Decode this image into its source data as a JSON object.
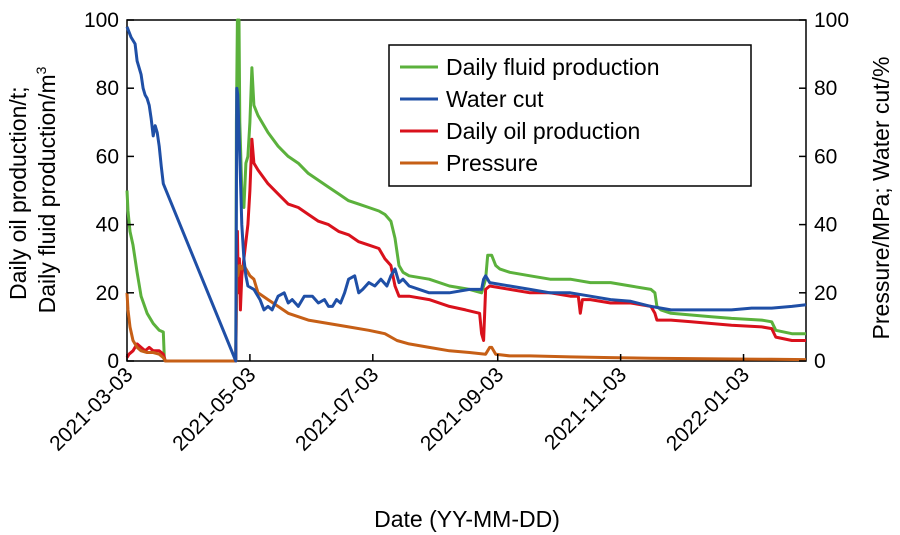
{
  "chart_data": {
    "type": "line",
    "xlabel": "Date (YY-MM-DD)",
    "ylabel_left": [
      "Daily oil production/t;",
      "Daily fluid production/m"
    ],
    "ylabel_left_superscript": "3",
    "ylabel_right": "Pressure/MPa; Water cut/%",
    "x_range_days": [
      0,
      337
    ],
    "x_ticks": [
      {
        "label": "2021-03-03",
        "day": 0
      },
      {
        "label": "2021-05-03",
        "day": 61
      },
      {
        "label": "2021-07-03",
        "day": 122
      },
      {
        "label": "2021-09-03",
        "day": 184
      },
      {
        "label": "2021-11-03",
        "day": 245
      },
      {
        "label": "2022-01-03",
        "day": 306
      }
    ],
    "y_left_ticks": [
      "0",
      "20",
      "40",
      "60",
      "80",
      "100"
    ],
    "y_right_ticks": [
      "0",
      "20",
      "40",
      "60",
      "80",
      "100"
    ],
    "y_left_range": [
      0,
      100
    ],
    "y_right_range": [
      0,
      100
    ],
    "legend_position": "top-right",
    "series": [
      {
        "name": "Daily fluid production",
        "color": "#5bb13c",
        "axis": "left",
        "points": [
          [
            0,
            50
          ],
          [
            0.5,
            44
          ],
          [
            1.5,
            38
          ],
          [
            3,
            34
          ],
          [
            5,
            26
          ],
          [
            7,
            19
          ],
          [
            10,
            14
          ],
          [
            13,
            11
          ],
          [
            16,
            9
          ],
          [
            18,
            8.5
          ],
          [
            18.5,
            1
          ],
          [
            19,
            0
          ],
          [
            54,
            0
          ],
          [
            54.3,
            70
          ],
          [
            54.8,
            100
          ],
          [
            55.2,
            80
          ],
          [
            55.6,
            100
          ],
          [
            56,
            70
          ],
          [
            57,
            50
          ],
          [
            58,
            45
          ],
          [
            59,
            58
          ],
          [
            60,
            60
          ],
          [
            61,
            70
          ],
          [
            62,
            86
          ],
          [
            63,
            75
          ],
          [
            65,
            72
          ],
          [
            70,
            67
          ],
          [
            75,
            63
          ],
          [
            80,
            60
          ],
          [
            85,
            58
          ],
          [
            90,
            55
          ],
          [
            95,
            53
          ],
          [
            100,
            51
          ],
          [
            105,
            49
          ],
          [
            110,
            47
          ],
          [
            115,
            46
          ],
          [
            120,
            45
          ],
          [
            125,
            44
          ],
          [
            128,
            43
          ],
          [
            131,
            41
          ],
          [
            133,
            36
          ],
          [
            134,
            32
          ],
          [
            135,
            28
          ],
          [
            137,
            26
          ],
          [
            140,
            25
          ],
          [
            150,
            24
          ],
          [
            160,
            22
          ],
          [
            170,
            21
          ],
          [
            176,
            20
          ],
          [
            177,
            22
          ],
          [
            178,
            24
          ],
          [
            179,
            31
          ],
          [
            181,
            31
          ],
          [
            183,
            28
          ],
          [
            185,
            27
          ],
          [
            190,
            26
          ],
          [
            200,
            25
          ],
          [
            210,
            24
          ],
          [
            220,
            24
          ],
          [
            230,
            23
          ],
          [
            240,
            23
          ],
          [
            250,
            22
          ],
          [
            260,
            21
          ],
          [
            262,
            20
          ],
          [
            263,
            16
          ],
          [
            265,
            15
          ],
          [
            270,
            14
          ],
          [
            280,
            13.5
          ],
          [
            290,
            13
          ],
          [
            300,
            12.5
          ],
          [
            315,
            12
          ],
          [
            320,
            11.5
          ],
          [
            322,
            9
          ],
          [
            330,
            8
          ],
          [
            337,
            8
          ]
        ]
      },
      {
        "name": "Water cut",
        "color": "#1f4fa6",
        "axis": "right",
        "points": [
          [
            0,
            98
          ],
          [
            2,
            95
          ],
          [
            4,
            93
          ],
          [
            5,
            88
          ],
          [
            6,
            86
          ],
          [
            7,
            84
          ],
          [
            8,
            80
          ],
          [
            9,
            78
          ],
          [
            10,
            77
          ],
          [
            11,
            75
          ],
          [
            12,
            71
          ],
          [
            13,
            66
          ],
          [
            14,
            69
          ],
          [
            15,
            67
          ],
          [
            16,
            63
          ],
          [
            17,
            57
          ],
          [
            18,
            52
          ],
          [
            54,
            0
          ],
          [
            54.5,
            80
          ],
          [
            55,
            78
          ],
          [
            56,
            60
          ],
          [
            57,
            40
          ],
          [
            58,
            30
          ],
          [
            59,
            25
          ],
          [
            60,
            22
          ],
          [
            63,
            21
          ],
          [
            66,
            18
          ],
          [
            68,
            15
          ],
          [
            70,
            16
          ],
          [
            72,
            15
          ],
          [
            75,
            19
          ],
          [
            78,
            20
          ],
          [
            80,
            17
          ],
          [
            82,
            18
          ],
          [
            85,
            16
          ],
          [
            88,
            19
          ],
          [
            92,
            19
          ],
          [
            95,
            17
          ],
          [
            98,
            18
          ],
          [
            100,
            16
          ],
          [
            102,
            16
          ],
          [
            104,
            18
          ],
          [
            106,
            17
          ],
          [
            108,
            20
          ],
          [
            110,
            24
          ],
          [
            113,
            25
          ],
          [
            115,
            20
          ],
          [
            117,
            21
          ],
          [
            120,
            23
          ],
          [
            123,
            22
          ],
          [
            126,
            24
          ],
          [
            129,
            22
          ],
          [
            131,
            25
          ],
          [
            133,
            27
          ],
          [
            135,
            23
          ],
          [
            137,
            24
          ],
          [
            140,
            22
          ],
          [
            145,
            21
          ],
          [
            150,
            20
          ],
          [
            160,
            20
          ],
          [
            170,
            21
          ],
          [
            176,
            21
          ],
          [
            177,
            24
          ],
          [
            178,
            25
          ],
          [
            180,
            23
          ],
          [
            190,
            22
          ],
          [
            200,
            21
          ],
          [
            210,
            20
          ],
          [
            220,
            20
          ],
          [
            230,
            19
          ],
          [
            240,
            18
          ],
          [
            250,
            17.5
          ],
          [
            260,
            16
          ],
          [
            270,
            15
          ],
          [
            280,
            15
          ],
          [
            290,
            15
          ],
          [
            300,
            15
          ],
          [
            310,
            15.5
          ],
          [
            320,
            15.5
          ],
          [
            330,
            16
          ],
          [
            337,
            16.5
          ]
        ]
      },
      {
        "name": "Daily oil production",
        "color": "#d9111c",
        "axis": "left",
        "points": [
          [
            0,
            1
          ],
          [
            1,
            2
          ],
          [
            3,
            3
          ],
          [
            5,
            5
          ],
          [
            7,
            4
          ],
          [
            9,
            3
          ],
          [
            11,
            4
          ],
          [
            13,
            3
          ],
          [
            16,
            3
          ],
          [
            18,
            2
          ],
          [
            19,
            0
          ],
          [
            54,
            0
          ],
          [
            54.3,
            20
          ],
          [
            54.8,
            38
          ],
          [
            55.3,
            20
          ],
          [
            55.8,
            30
          ],
          [
            56.3,
            15
          ],
          [
            57,
            25
          ],
          [
            58,
            30
          ],
          [
            59,
            35
          ],
          [
            60,
            40
          ],
          [
            61,
            50
          ],
          [
            62,
            65
          ],
          [
            63,
            58
          ],
          [
            65,
            56
          ],
          [
            70,
            52
          ],
          [
            75,
            49
          ],
          [
            80,
            46
          ],
          [
            85,
            45
          ],
          [
            90,
            43
          ],
          [
            95,
            41
          ],
          [
            100,
            40
          ],
          [
            105,
            38
          ],
          [
            110,
            37
          ],
          [
            115,
            35
          ],
          [
            120,
            34
          ],
          [
            125,
            33
          ],
          [
            128,
            30
          ],
          [
            131,
            28
          ],
          [
            133,
            22
          ],
          [
            135,
            19
          ],
          [
            140,
            19
          ],
          [
            150,
            18
          ],
          [
            160,
            16
          ],
          [
            168,
            15
          ],
          [
            175,
            14
          ],
          [
            176,
            8
          ],
          [
            177,
            6
          ],
          [
            178,
            21
          ],
          [
            180,
            22
          ],
          [
            190,
            21
          ],
          [
            200,
            20
          ],
          [
            210,
            20
          ],
          [
            220,
            19
          ],
          [
            224,
            19
          ],
          [
            225,
            14
          ],
          [
            226,
            18
          ],
          [
            230,
            18
          ],
          [
            240,
            17
          ],
          [
            250,
            17
          ],
          [
            260,
            16
          ],
          [
            262,
            14
          ],
          [
            263,
            12
          ],
          [
            270,
            12
          ],
          [
            280,
            11.5
          ],
          [
            290,
            11
          ],
          [
            300,
            10.5
          ],
          [
            315,
            10
          ],
          [
            320,
            9.5
          ],
          [
            322,
            7
          ],
          [
            330,
            6
          ],
          [
            337,
            6
          ]
        ]
      },
      {
        "name": "Pressure",
        "color": "#c65f16",
        "axis": "right",
        "points": [
          [
            0,
            20
          ],
          [
            0.5,
            15
          ],
          [
            1.5,
            10
          ],
          [
            3,
            6
          ],
          [
            5,
            4
          ],
          [
            7,
            3
          ],
          [
            10,
            2.5
          ],
          [
            13,
            2.5
          ],
          [
            16,
            2
          ],
          [
            18,
            1
          ],
          [
            19,
            0
          ],
          [
            54,
            0
          ],
          [
            54.5,
            28
          ],
          [
            55,
            25
          ],
          [
            56,
            28
          ],
          [
            57,
            27
          ],
          [
            58,
            28
          ],
          [
            59,
            27
          ],
          [
            60,
            26
          ],
          [
            61,
            25
          ],
          [
            63,
            24
          ],
          [
            65,
            20
          ],
          [
            70,
            18
          ],
          [
            75,
            16
          ],
          [
            80,
            14
          ],
          [
            90,
            12
          ],
          [
            100,
            11
          ],
          [
            110,
            10
          ],
          [
            120,
            9
          ],
          [
            128,
            8
          ],
          [
            134,
            6
          ],
          [
            140,
            5
          ],
          [
            150,
            4
          ],
          [
            160,
            3
          ],
          [
            170,
            2.5
          ],
          [
            178,
            2
          ],
          [
            180,
            4
          ],
          [
            181,
            4
          ],
          [
            183,
            2
          ],
          [
            190,
            1.5
          ],
          [
            200,
            1.5
          ],
          [
            220,
            1.2
          ],
          [
            240,
            1
          ],
          [
            260,
            0.8
          ],
          [
            280,
            0.7
          ],
          [
            300,
            0.6
          ],
          [
            320,
            0.5
          ],
          [
            337,
            0.4
          ]
        ]
      }
    ]
  }
}
